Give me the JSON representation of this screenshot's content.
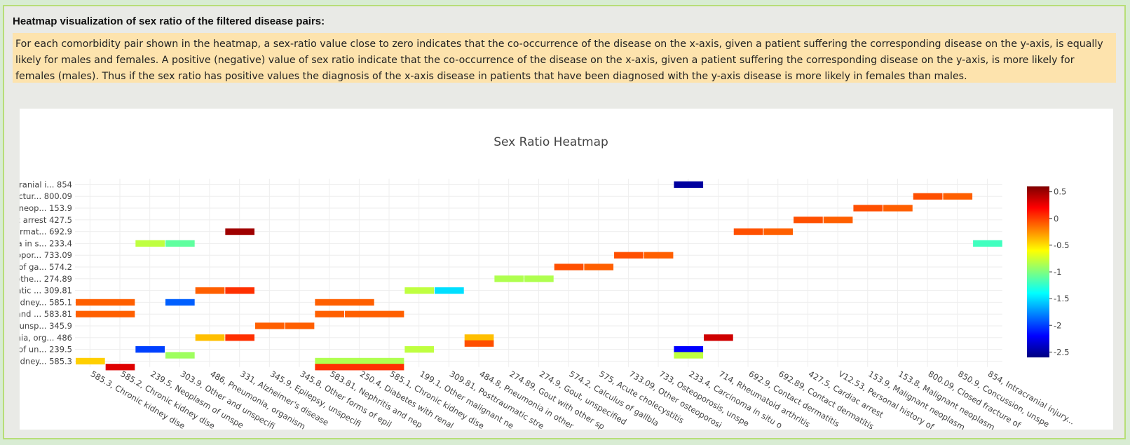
{
  "panel": {
    "title": "Heatmap visualization of sex ratio of the filtered disease pairs:",
    "description": "For each comorbidity pair shown in the heatmap, a sex-ratio value close to zero indicates that the co-occurrence of the disease on the x-axis, given a patient suffering the corresponding disease on the y-axis, is equally likely for males and females. A positive (negative) value of sex ratio indicate that the co-occurrence of the disease on the x-axis, given a patient suffering the corresponding disease on the y-axis, is more likely for females (males). Thus if the sex ratio has positive values the diagnosis of the x-axis disease in patients that have been diagnosed with the y-axis disease is more likely in females than males."
  },
  "chart_data": {
    "type": "heatmap",
    "title": "Sex Ratio Heatmap",
    "x_labels": [
      "585.3, Chronic kidney dise",
      "585.2, Chronic kidney dise",
      "239.5, Neoplasm of unspe",
      "303.9, Other and unspecifi",
      "486, Pneumonia, organism",
      "331, Alzheimer's disease",
      "345.9, Epilepsy, unspecifi",
      "345.8, Other forms of epil",
      "583.81, Nephritis and nep",
      "250.4, Diabetes with renal",
      "585.1, Chronic kidney dise",
      "199.1, Other malignant ne",
      "309.81, Posttraumatic stre",
      "484.8, Pneumonia in other",
      "274.89, Gout with other sp",
      "274.9, Gout, unspecified",
      "574.2, Calculus of gallbla",
      "575, Acute cholecystitis",
      "733.09, Other osteoporosi",
      "733, Osteoporosis, unspe",
      "233.4, Carcinoma in situ o",
      "714, Rheumatoid arthritis",
      "692.9, Contact dermatitis",
      "692.89, Contact dermatitis",
      "427.5, Cardiac arrest",
      "V12.53, Personal history of",
      "153.9, Malignant neoplasm",
      "153.8, Malignant neoplasm",
      "800.09, Closed fracture of",
      "850.9, Concussion, unspe",
      "854, Intracranial injury..."
    ],
    "y_labels": [
      "cranial i... 854",
      "actur... 800.09",
      "t neop... 153.9",
      "c arrest 427.5",
      "ermat... 692.9",
      "ha in s... 233.4",
      "opor... 733.09",
      "s of ga... 574.2",
      "othe... 274.89",
      "atic ... 309.81",
      "kidney... 585.1",
      "and ... 583.81",
      ", unsp... 345.9",
      "nia, org... 486",
      "n of un... 239.5",
      "kidney... 585.3"
    ],
    "cells": [
      {
        "row": 0,
        "cells": [
          [
            20,
            20,
            -2.5
          ]
        ]
      },
      {
        "row": 1,
        "cells": [
          [
            28,
            28,
            -0.05
          ],
          [
            29,
            29,
            -0.1
          ]
        ]
      },
      {
        "row": 2,
        "cells": [
          [
            26,
            26,
            -0.05
          ],
          [
            27,
            27,
            -0.1
          ]
        ]
      },
      {
        "row": 3,
        "cells": [
          [
            24,
            24,
            -0.05
          ],
          [
            25,
            25,
            -0.1
          ]
        ]
      },
      {
        "row": 4,
        "cells": [
          [
            5,
            5,
            0.5
          ],
          [
            22,
            22,
            -0.05
          ],
          [
            23,
            23,
            -0.1
          ]
        ]
      },
      {
        "row": 5,
        "cells": [
          [
            2,
            2,
            -0.8
          ],
          [
            3,
            3,
            -1.1
          ],
          [
            30,
            30,
            -1.2
          ]
        ]
      },
      {
        "row": 6,
        "cells": [
          [
            18,
            18,
            -0.05
          ],
          [
            19,
            19,
            -0.1
          ]
        ]
      },
      {
        "row": 7,
        "cells": [
          [
            16,
            16,
            -0.05
          ],
          [
            17,
            17,
            -0.1
          ]
        ]
      },
      {
        "row": 8,
        "cells": [
          [
            14,
            14,
            -0.85
          ],
          [
            15,
            15,
            -0.85
          ]
        ]
      },
      {
        "row": 9,
        "cells": [
          [
            4,
            4,
            -0.1
          ],
          [
            5,
            5,
            0.05
          ],
          [
            11,
            11,
            -0.8
          ],
          [
            12,
            12,
            -1.5
          ]
        ]
      },
      {
        "row": 10,
        "cells": [
          [
            0,
            1,
            -0.1
          ],
          [
            3,
            3,
            -1.9
          ],
          [
            8,
            9,
            -0.1
          ]
        ]
      },
      {
        "row": 11,
        "cells": [
          [
            0,
            1,
            -0.1
          ],
          [
            8,
            8,
            -0.1
          ],
          [
            9,
            10,
            -0.1
          ]
        ]
      },
      {
        "row": 12,
        "cells": [
          [
            6,
            6,
            -0.1
          ],
          [
            7,
            7,
            -0.1
          ]
        ]
      },
      {
        "row": 13,
        "cells": [
          [
            4,
            4,
            -0.4
          ],
          [
            5,
            5,
            0.05
          ],
          [
            13,
            13,
            -0.4
          ],
          [
            21,
            21,
            0.35
          ]
        ]
      },
      {
        "row": 13.5,
        "cells": [
          [
            13,
            13,
            -0.05
          ]
        ]
      },
      {
        "row": 14,
        "cells": [
          [
            2,
            2,
            -2.0
          ],
          [
            11,
            11,
            -0.8
          ],
          [
            20,
            20,
            -2.2
          ]
        ]
      },
      {
        "row": 14.5,
        "cells": [
          [
            3,
            3,
            -0.9
          ],
          [
            20,
            20,
            -0.8
          ]
        ]
      },
      {
        "row": 15,
        "cells": [
          [
            0,
            0,
            -0.45
          ],
          [
            8,
            10,
            -0.85
          ]
        ]
      },
      {
        "row": 15.5,
        "cells": [
          [
            1,
            1,
            0.3
          ],
          [
            8,
            10,
            0.05
          ]
        ]
      }
    ],
    "colorscale": {
      "zmin": -2.6,
      "zmax": 0.6,
      "ticks": [
        "0.5",
        "0",
        "-0.5",
        "-1",
        "-1.5",
        "-2",
        "-2.5"
      ],
      "tick_values": [
        0.5,
        0,
        -0.5,
        -1,
        -1.5,
        -2,
        -2.5
      ],
      "colors": [
        "#00007f",
        "#0000ff",
        "#007fff",
        "#00ffff",
        "#7fff7f",
        "#ffff00",
        "#ff7f00",
        "#ff0000",
        "#7f0000"
      ]
    },
    "grid": true
  }
}
